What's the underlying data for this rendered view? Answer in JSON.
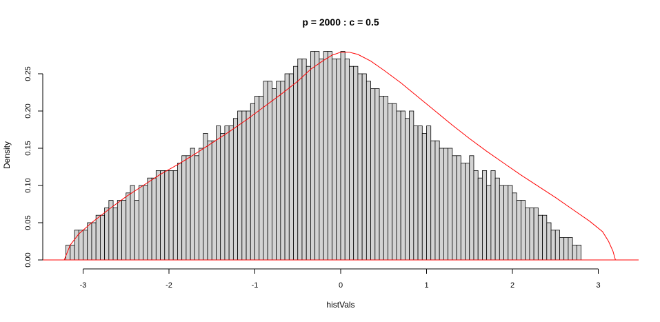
{
  "chart_data": {
    "type": "bar",
    "subtype": "histogram",
    "title": "p = 2000 : c = 0.5",
    "xlabel": "histVals",
    "ylabel": "Density",
    "xlim": [
      -3.4,
      3.5
    ],
    "ylim": [
      0,
      0.28
    ],
    "x_ticks": [
      -3,
      -2,
      -1,
      0,
      1,
      2,
      3
    ],
    "x_tick_labels": [
      "-3",
      "-2",
      "-1",
      "0",
      "1",
      "2",
      "3"
    ],
    "y_ticks": [
      0,
      0.05,
      0.1,
      0.15,
      0.2,
      0.25
    ],
    "y_tick_labels": [
      "0.00",
      "0.05",
      "0.10",
      "0.15",
      "0.20",
      "0.25"
    ],
    "bin_start": -3.2,
    "bin_width": 0.05,
    "bar_fill": "#d3d3d3",
    "bar_stroke": "#000000",
    "curve_color": "#ff0000",
    "densities": [
      0.02,
      0.02,
      0.04,
      0.04,
      0.04,
      0.05,
      0.05,
      0.06,
      0.06,
      0.07,
      0.08,
      0.07,
      0.08,
      0.08,
      0.09,
      0.1,
      0.08,
      0.1,
      0.1,
      0.11,
      0.11,
      0.12,
      0.12,
      0.12,
      0.12,
      0.12,
      0.13,
      0.14,
      0.14,
      0.15,
      0.14,
      0.15,
      0.17,
      0.16,
      0.16,
      0.18,
      0.17,
      0.18,
      0.18,
      0.19,
      0.2,
      0.2,
      0.2,
      0.21,
      0.22,
      0.22,
      0.24,
      0.24,
      0.23,
      0.24,
      0.24,
      0.25,
      0.25,
      0.26,
      0.27,
      0.27,
      0.26,
      0.28,
      0.28,
      0.27,
      0.28,
      0.28,
      0.27,
      0.27,
      0.28,
      0.27,
      0.26,
      0.26,
      0.25,
      0.25,
      0.24,
      0.23,
      0.23,
      0.22,
      0.22,
      0.21,
      0.21,
      0.2,
      0.2,
      0.19,
      0.2,
      0.18,
      0.18,
      0.17,
      0.18,
      0.16,
      0.16,
      0.15,
      0.15,
      0.15,
      0.14,
      0.14,
      0.13,
      0.13,
      0.14,
      0.12,
      0.11,
      0.12,
      0.1,
      0.12,
      0.11,
      0.1,
      0.1,
      0.1,
      0.09,
      0.08,
      0.08,
      0.07,
      0.07,
      0.07,
      0.06,
      0.06,
      0.05,
      0.04,
      0.04,
      0.03,
      0.03,
      0.03,
      0.02,
      0.02
    ],
    "density_curve": {
      "x": [
        -3.22,
        -3.15,
        -3.05,
        -2.9,
        -2.7,
        -2.5,
        -2.3,
        -2.1,
        -1.9,
        -1.7,
        -1.5,
        -1.3,
        -1.1,
        -0.9,
        -0.7,
        -0.5,
        -0.35,
        -0.2,
        -0.1,
        0.0,
        0.1,
        0.2,
        0.35,
        0.5,
        0.7,
        0.9,
        1.1,
        1.3,
        1.5,
        1.7,
        1.9,
        2.1,
        2.3,
        2.5,
        2.7,
        2.9,
        3.05,
        3.12,
        3.17,
        3.2
      ],
      "y": [
        0.0,
        0.02,
        0.035,
        0.05,
        0.068,
        0.085,
        0.1,
        0.115,
        0.128,
        0.142,
        0.157,
        0.172,
        0.188,
        0.205,
        0.222,
        0.24,
        0.256,
        0.268,
        0.275,
        0.279,
        0.279,
        0.276,
        0.267,
        0.255,
        0.238,
        0.219,
        0.2,
        0.181,
        0.163,
        0.146,
        0.13,
        0.114,
        0.099,
        0.084,
        0.068,
        0.052,
        0.038,
        0.025,
        0.012,
        0.0
      ]
    }
  }
}
